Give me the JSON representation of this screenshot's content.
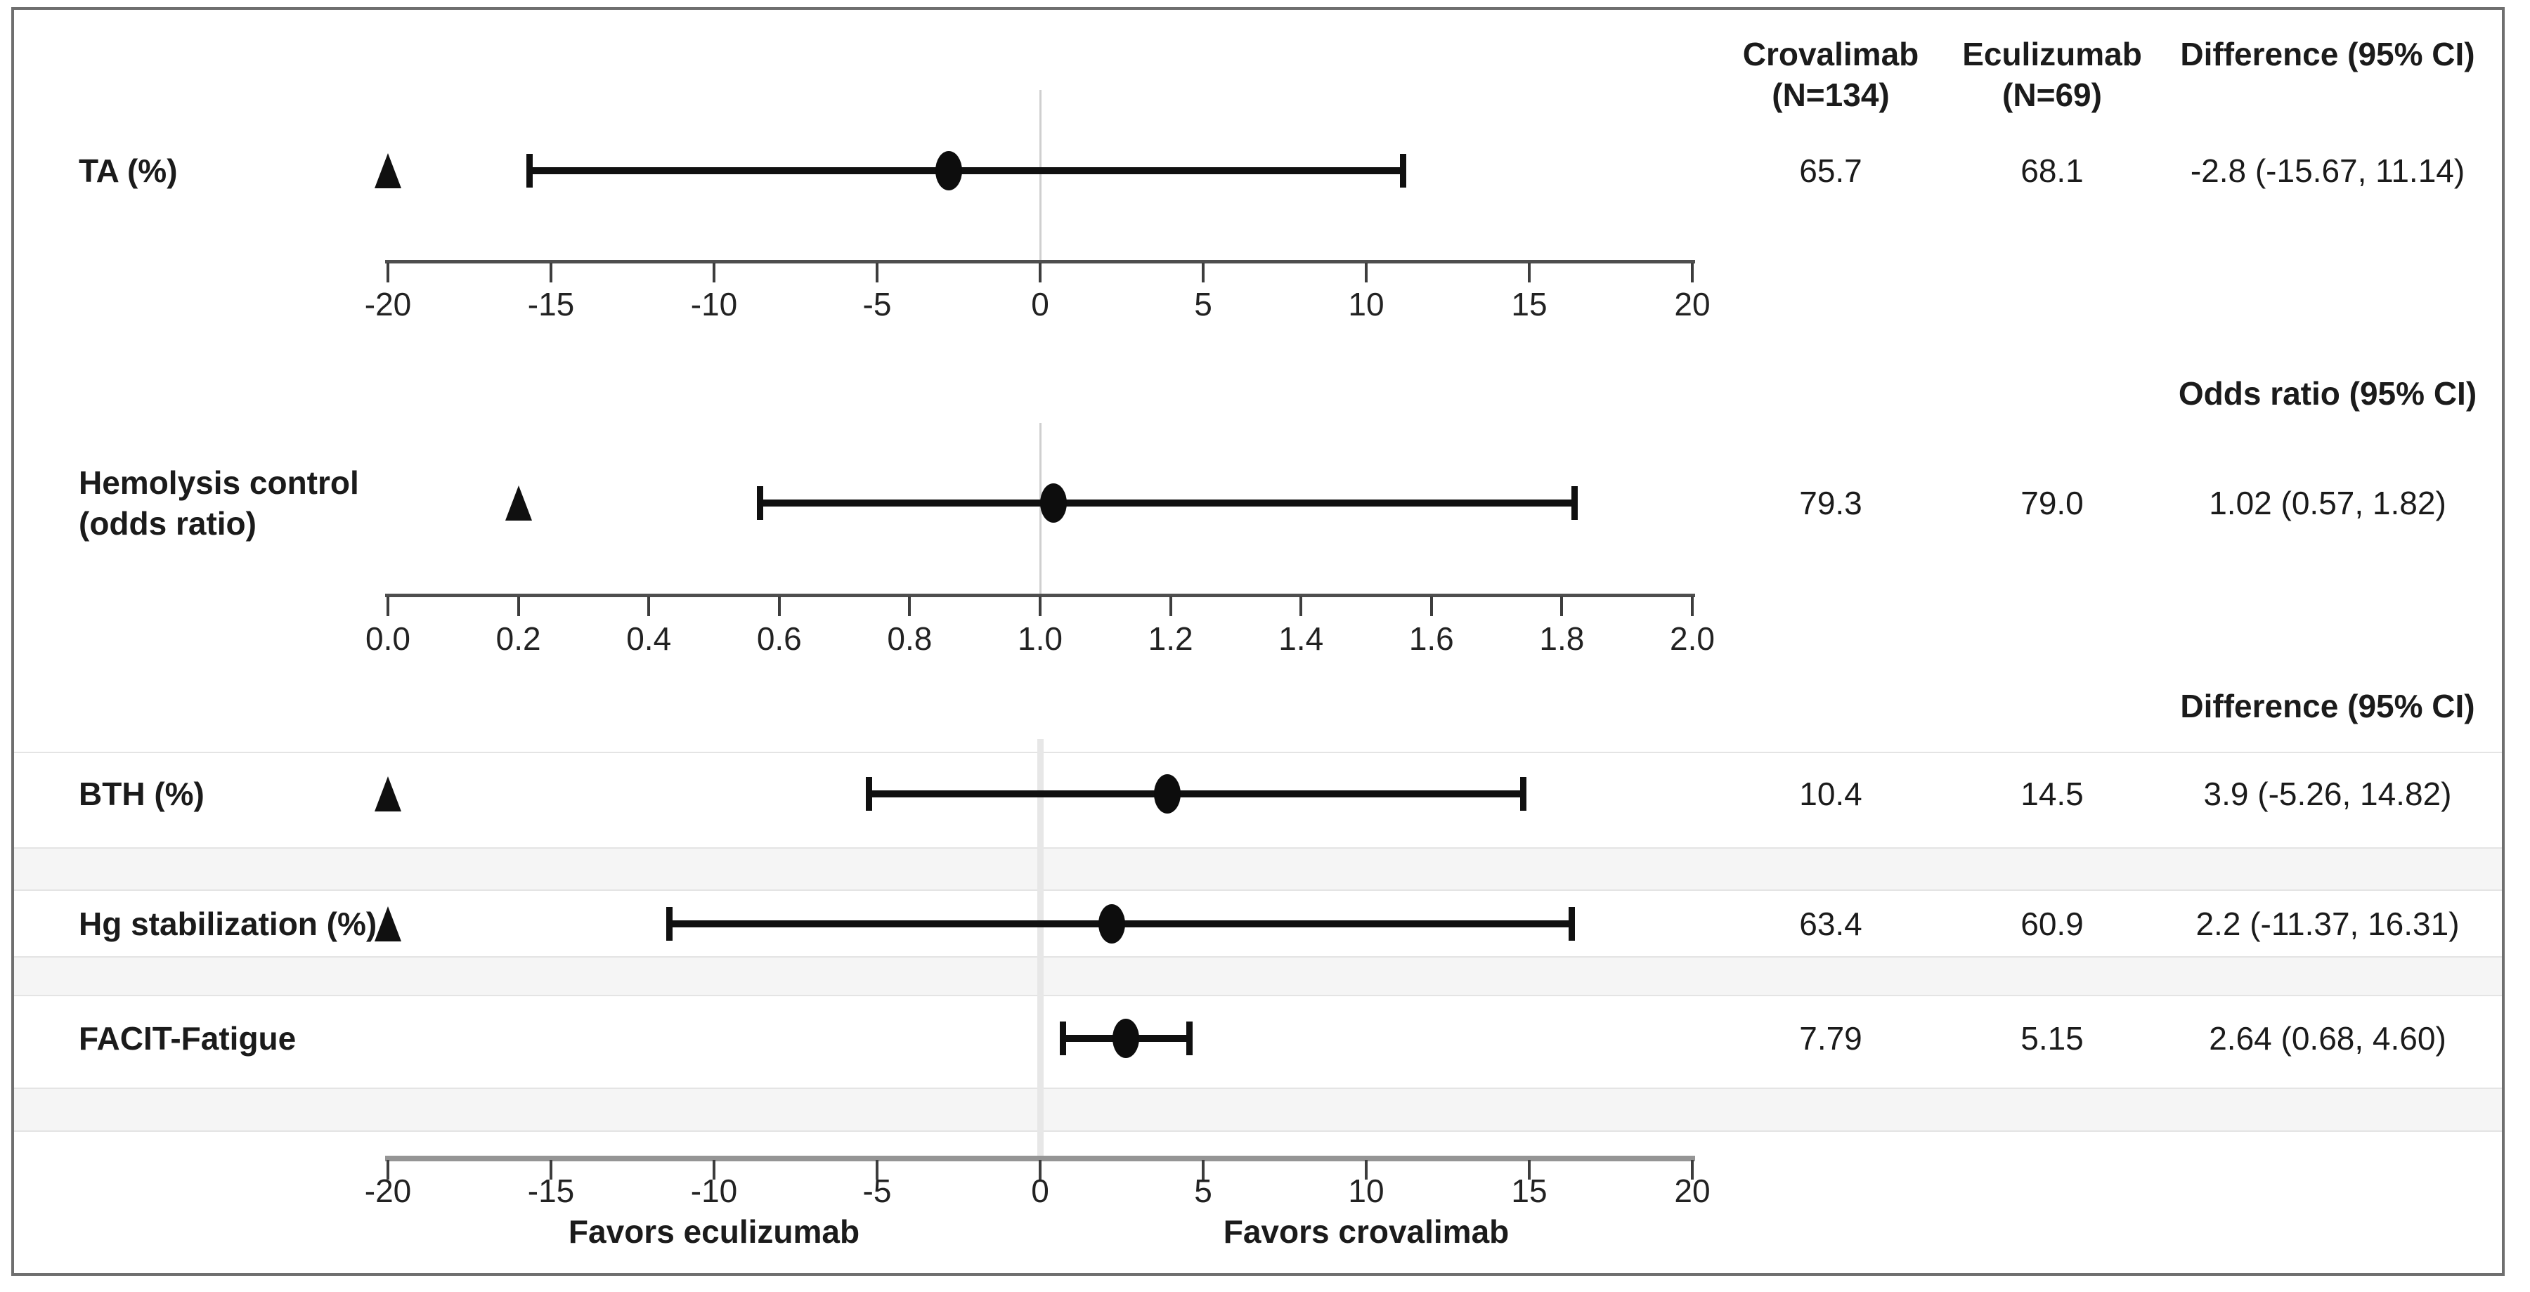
{
  "column_headers": [
    {
      "line1": "Crovalimab",
      "line2": "(N=134)"
    },
    {
      "line1": "Eculizumab",
      "line2": "(N=69)"
    },
    {
      "line1": "Difference (95% CI)",
      "line2": ""
    }
  ],
  "chart_data": {
    "type": "forest",
    "layout_note": "three horizontal axis sections, shared vertical reference line, results table at right",
    "sections": [
      {
        "id": "ta",
        "effect_column_header": "Difference (95% CI)",
        "axis": {
          "min": -20,
          "max": 20,
          "tick_labels": [
            "-20",
            "-15",
            "-10",
            "-5",
            "0",
            "5",
            "10",
            "15",
            "20"
          ],
          "reference_line": 0
        },
        "rows": [
          {
            "label_lines": [
              "TA (%)"
            ],
            "estimate": -2.8,
            "ci_low": -15.67,
            "ci_high": 11.14,
            "noninferiority_triangle": -20,
            "crovalimab": "65.7",
            "eculizumab": "68.1",
            "effect": "-2.8 (-15.67, 11.14)"
          }
        ]
      },
      {
        "id": "hemolysis-control",
        "effect_column_header": "Odds ratio (95% CI)",
        "axis": {
          "min": 0,
          "max": 2,
          "tick_labels": [
            "0.0",
            "0.2",
            "0.4",
            "0.6",
            "0.8",
            "1.0",
            "1.2",
            "1.4",
            "1.6",
            "1.8",
            "2.0"
          ],
          "reference_line": 1
        },
        "rows": [
          {
            "label_lines": [
              "Hemolysis control",
              "(odds ratio)"
            ],
            "estimate": 1.02,
            "ci_low": 0.57,
            "ci_high": 1.82,
            "noninferiority_triangle": 0.2,
            "crovalimab": "79.3",
            "eculizumab": "79.0",
            "effect": "1.02 (0.57, 1.82)"
          }
        ]
      },
      {
        "id": "secondary-endpoints",
        "effect_column_header": "Difference (95% CI)",
        "axis": {
          "min": -20,
          "max": 20,
          "tick_labels": [
            "-20",
            "-15",
            "-10",
            "-5",
            "0",
            "5",
            "10",
            "15",
            "20"
          ],
          "reference_line": 0,
          "favors_left": "Favors eculizumab",
          "favors_right": "Favors crovalimab"
        },
        "rows": [
          {
            "label_lines": [
              "BTH (%)"
            ],
            "estimate": 3.9,
            "ci_low": -5.26,
            "ci_high": 14.82,
            "noninferiority_triangle": -20,
            "crovalimab": "10.4",
            "eculizumab": "14.5",
            "effect": "3.9 (-5.26, 14.82)"
          },
          {
            "label_lines": [
              "Hg stabilization (%)"
            ],
            "estimate": 2.2,
            "ci_low": -11.37,
            "ci_high": 16.31,
            "noninferiority_triangle": -20,
            "crovalimab": "63.4",
            "eculizumab": "60.9",
            "effect": "2.2 (-11.37, 16.31)"
          },
          {
            "label_lines": [
              "FACIT-Fatigue"
            ],
            "estimate": 2.64,
            "ci_low": 0.68,
            "ci_high": 4.6,
            "noninferiority_triangle": null,
            "crovalimab": "7.79",
            "eculizumab": "5.15",
            "effect": "2.64 (0.68, 4.60)"
          }
        ]
      }
    ]
  }
}
